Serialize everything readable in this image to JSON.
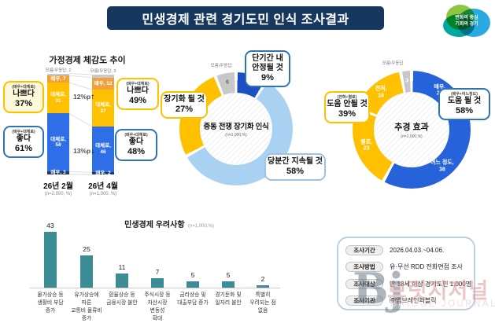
{
  "header": {
    "title": "민생경제 관련 경기도민 인식 조사결과",
    "logo": {
      "line1": "변화의 중심",
      "line2": "기회의 경기"
    }
  },
  "colors": {
    "header_navy": "#17375E",
    "orange": "#F0A13C",
    "yellow": "#FFC000",
    "blue": "#2E6FE8",
    "navy": "#1F3864",
    "light_blue": "#A9D2F2",
    "dark_blue": "#1C4FC4",
    "gray": "#C8C8C8",
    "teal": "#3B8C94"
  },
  "chart_data": [
    {
      "id": "household-trend",
      "type": "bar",
      "stacked": true,
      "title": "가정경제 체감도 추이",
      "categories": [
        "26년 2월",
        "26년 4월"
      ],
      "category_notes": [
        "(n=2,000, %)",
        "(n=1,000, %)"
      ],
      "series": [
        {
          "name": "모름/무응답",
          "values": [
            2,
            3
          ],
          "color": "#C9C9C9",
          "in_labels": [
            "",
            ""
          ]
        },
        {
          "name": "매우 나쁘다",
          "values": [
            7,
            12
          ],
          "color": "#F0A13C",
          "text_color": "#fff",
          "in_labels": [
            "매우, 7",
            "매우, 12"
          ]
        },
        {
          "name": "대체로 나쁘다",
          "values": [
            31,
            37
          ],
          "color": "#FFC000",
          "text_color": "#fff",
          "in_labels": [
            "대체로,\n31",
            "대체로,\n37"
          ]
        },
        {
          "name": "대체로 좋다",
          "values": [
            58,
            46
          ],
          "color": "#2E6FE8",
          "text_color": "#fff",
          "in_labels": [
            "대체로,\n58",
            "대체로,\n46"
          ]
        },
        {
          "name": "매우 좋다",
          "values": [
            3,
            2
          ],
          "color": "#1F3864",
          "text_color": "#fff",
          "in_labels": [
            "매우, 3",
            "매우, 2"
          ]
        }
      ],
      "top_labels": [
        "모름/무응답, 2",
        "모름/무응답, 3"
      ],
      "change_labels": [
        {
          "text": "12%p",
          "arrow": "↑"
        },
        {
          "text": "13%p",
          "arrow": "↓"
        }
      ],
      "callouts": [
        {
          "sub": "(매우+대체로)",
          "label": "나쁘다",
          "value": "37%"
        },
        {
          "sub": "(매우+대체로)",
          "label": "좋다",
          "value": "61%"
        },
        {
          "sub": "(매우+대체로)",
          "label": "나쁘다",
          "value": "49%"
        },
        {
          "sub": "(매우+대체로)",
          "label": "좋다",
          "value": "48%"
        }
      ]
    },
    {
      "id": "war-outlook",
      "type": "pie",
      "donut": true,
      "title": "중동 전쟁 장기화 인식",
      "subtitle": "(n=1,000,%)",
      "outside_label": "모름/무응답",
      "segments": [
        {
          "label": "단기간 내 안정될 것",
          "value": 9,
          "color": "#1C4FC4"
        },
        {
          "label": "당분간 지속될 것",
          "value": 58,
          "color": "#A9D2F2"
        },
        {
          "label": "장기화 될 것",
          "value": 27,
          "color": "#FFC000"
        },
        {
          "label": "모름/무응답",
          "value": 6,
          "color": "#C8C8C8",
          "inner_label": "6",
          "label_color": "#666"
        }
      ],
      "callouts": [
        {
          "label": "장기화 될 것",
          "value": "27%"
        },
        {
          "label": "단기간 내\n안정될 것",
          "value": "9%"
        },
        {
          "label": "당분간 지속될 것",
          "value": "58%"
        }
      ]
    },
    {
      "id": "supplementary-budget-effect",
      "type": "pie",
      "donut": true,
      "title": "추경 효과",
      "subtitle": "(n=1,000,%)",
      "outside_label": "모름/무응답",
      "segments": [
        {
          "label": "매우",
          "value": 20,
          "color": "#2663DB",
          "inner_label": "매우,\n20",
          "label_color": "#fff"
        },
        {
          "label": "어느 정도",
          "value": 38,
          "color": "#2663DB",
          "inner_label": "어느 정도,\n38",
          "label_color": "#fff"
        },
        {
          "label": "별로",
          "value": 23,
          "color": "#FFC000",
          "inner_label": "별로,\n23",
          "label_color": "#fff"
        },
        {
          "label": "전혀",
          "value": 16,
          "color": "#FFC000",
          "inner_label": "전혀,\n16",
          "label_color": "#fff"
        },
        {
          "label": "모름/무응답",
          "value": 3,
          "color": "#C8C8C8",
          "inner_label": "3",
          "label_color": "#fff"
        }
      ],
      "callouts": [
        {
          "sub": "(전혀+별로)",
          "label": "도움 안될 것",
          "value": "39%"
        },
        {
          "sub": "(매우+어느정도)",
          "label": "도움 될 것",
          "value": "58%"
        }
      ]
    },
    {
      "id": "economy-concerns",
      "type": "bar",
      "title": "민생경제 우려사항",
      "subtitle": "(n=1,000,%)",
      "bar_color": "#3B8C94",
      "categories": [
        "물가상승 등\n생활비 부담\n증가",
        "유가상승에\n따른\n교통비 물류비\n증가",
        "환율상승 등\n금융시장 불안",
        "주식시장 등\n자산시장\n변동성\n확대",
        "금리상승 및\n대출부담 증가",
        "경기둔화 및\n일자리 불안",
        "특별히\n우려되는 점\n없음"
      ],
      "values": [
        43,
        25,
        11,
        7,
        5,
        5,
        2
      ]
    }
  ],
  "info_box": {
    "rows": [
      {
        "label": "조사기간",
        "value": "2026.04.03.~04.06."
      },
      {
        "label": "조사방법",
        "value": "유·무선 RDD 전화면접 조사"
      },
      {
        "label": "조사대상",
        "value": "만 18세 이상 경기도민 1,000명"
      },
      {
        "label": "조사기관",
        "value": "㈜엠브레인퍼블릭"
      }
    ]
  },
  "watermark": {
    "logo": "Bj",
    "korean": "브릿지저널",
    "english": "BRIDGE JOURNAL"
  }
}
